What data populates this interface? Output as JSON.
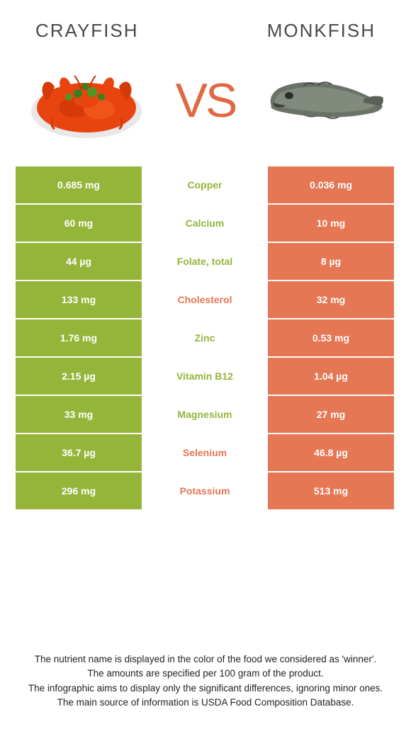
{
  "header": {
    "left_title": "Crayfish",
    "right_title": "Monkfish",
    "vs_text": "VS"
  },
  "colors": {
    "left_bg": "#95b53a",
    "right_bg": "#e57754",
    "vs_color": "#e06944",
    "title_color": "#4a4a4a",
    "white": "#ffffff"
  },
  "rows": [
    {
      "left": "0.685 mg",
      "mid": "Copper",
      "right": "0.036 mg",
      "mid_color": "#95b53a"
    },
    {
      "left": "60 mg",
      "mid": "Calcium",
      "right": "10 mg",
      "mid_color": "#95b53a"
    },
    {
      "left": "44 µg",
      "mid": "Folate, total",
      "right": "8 µg",
      "mid_color": "#95b53a"
    },
    {
      "left": "133 mg",
      "mid": "Cholesterol",
      "right": "32 mg",
      "mid_color": "#e57754"
    },
    {
      "left": "1.76 mg",
      "mid": "Zinc",
      "right": "0.53 mg",
      "mid_color": "#95b53a"
    },
    {
      "left": "2.15 µg",
      "mid": "Vitamin B12",
      "right": "1.04 µg",
      "mid_color": "#95b53a"
    },
    {
      "left": "33 mg",
      "mid": "Magnesium",
      "right": "27 mg",
      "mid_color": "#95b53a"
    },
    {
      "left": "36.7 µg",
      "mid": "Selenium",
      "right": "46.8 µg",
      "mid_color": "#e57754"
    },
    {
      "left": "296 mg",
      "mid": "Potassium",
      "right": "513 mg",
      "mid_color": "#e57754"
    }
  ],
  "footer": {
    "line1": "The nutrient name is displayed in the color of the food we considered as 'winner'.",
    "line2": "The amounts are specified per 100 gram of the product.",
    "line3": "The infographic aims to display only the significant differences, ignoring minor ones.",
    "line4": "The main source of information is USDA Food Composition Database."
  }
}
